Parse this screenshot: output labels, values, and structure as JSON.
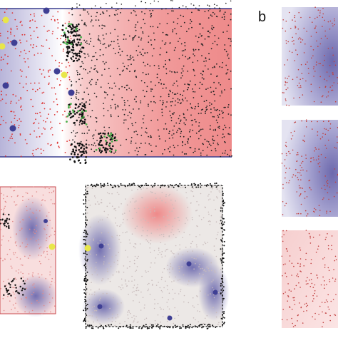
{
  "panel_label": "b"
}
